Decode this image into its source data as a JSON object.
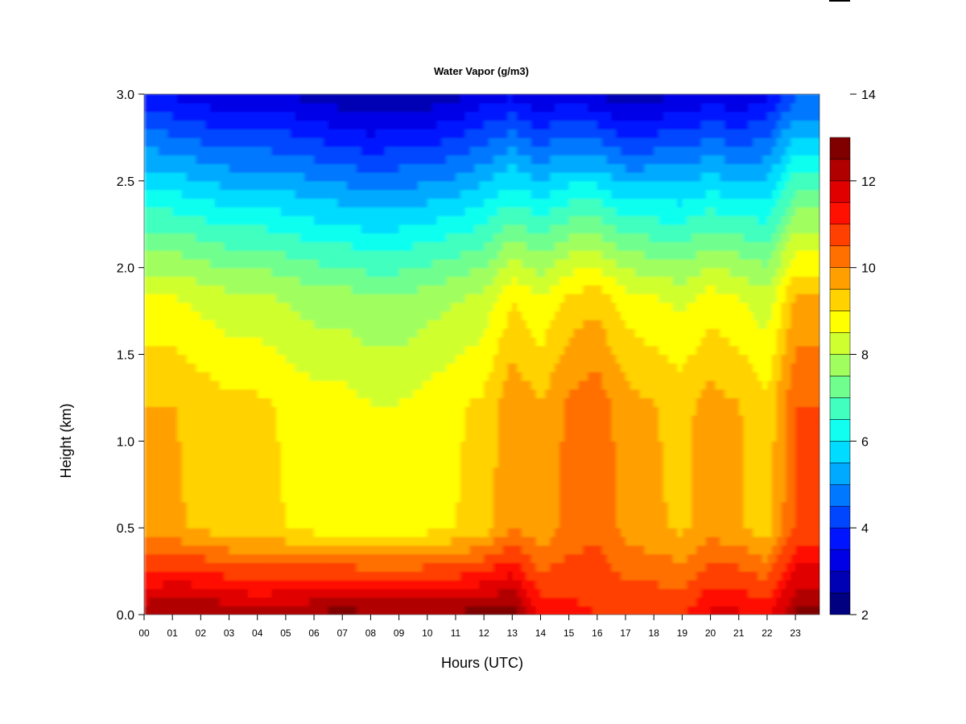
{
  "chart_data": {
    "type": "heatmap",
    "title": "Water Vapor (g/m3)",
    "xlabel": "Hours (UTC)",
    "ylabel": "Height (km)",
    "x_ticks": [
      "00",
      "01",
      "02",
      "03",
      "04",
      "05",
      "06",
      "07",
      "08",
      "09",
      "10",
      "11",
      "12",
      "13",
      "14",
      "15",
      "16",
      "17",
      "18",
      "19",
      "20",
      "21",
      "22",
      "23"
    ],
    "y_ticks": [
      "0.0",
      "0.5",
      "1.0",
      "1.5",
      "2.0",
      "2.5",
      "3.0"
    ],
    "xlim": [
      0,
      23.85
    ],
    "ylim": [
      0,
      3.0
    ],
    "colorbar": {
      "range": [
        2,
        14
      ],
      "step": 0.5,
      "ticks": [
        "2",
        "4",
        "6",
        "8",
        "10",
        "12",
        "14"
      ],
      "colors": [
        "#000080",
        "#0000b4",
        "#0000e6",
        "#0014ff",
        "#0046ff",
        "#0078ff",
        "#00aaff",
        "#00dcff",
        "#10fff0",
        "#40ffbf",
        "#70ff8f",
        "#a0ff5f",
        "#d0ff2f",
        "#ffff00",
        "#ffd200",
        "#ffa000",
        "#ff7000",
        "#ff4000",
        "#ff1000",
        "#e00000",
        "#b00000",
        "#800000"
      ]
    },
    "hours": [
      0,
      1,
      2,
      3,
      4,
      5,
      6,
      7,
      8,
      9,
      10,
      11,
      12,
      13,
      14,
      15,
      16,
      17,
      18,
      19,
      20,
      21,
      22,
      23
    ],
    "heights": [
      0.0,
      0.1,
      0.2,
      0.3,
      0.4,
      0.5,
      0.6,
      0.7,
      0.8,
      0.9,
      1.0,
      1.1,
      1.2,
      1.3,
      1.4,
      1.5,
      1.6,
      1.7,
      1.8,
      1.9,
      2.0,
      2.1,
      2.2,
      2.3,
      2.4,
      2.5,
      2.6,
      2.7,
      2.8,
      2.9,
      3.0
    ],
    "surface_values": [
      12.4,
      12.6,
      12.6,
      12.4,
      12.2,
      12.4,
      12.6,
      12.8,
      12.6,
      12.6,
      12.6,
      12.6,
      12.8,
      12.8,
      11.4,
      11.2,
      11.0,
      11.0,
      11.0,
      11.0,
      11.6,
      11.6,
      11.4,
      12.6
    ],
    "low_level_values": [
      9.6,
      9.6,
      9.4,
      9.2,
      9.2,
      9.0,
      8.8,
      8.8,
      8.6,
      8.6,
      8.8,
      9.0,
      9.2,
      10.0,
      9.6,
      10.2,
      10.4,
      9.8,
      9.6,
      9.4,
      9.8,
      9.6,
      9.2,
      10.6
    ],
    "upper_values": [
      3.6,
      3.4,
      3.2,
      3.0,
      3.0,
      3.0,
      2.8,
      2.6,
      2.4,
      2.6,
      2.6,
      2.8,
      3.2,
      3.4,
      3.0,
      3.2,
      3.0,
      2.6,
      2.8,
      3.0,
      3.2,
      3.0,
      3.4,
      4.4
    ]
  }
}
